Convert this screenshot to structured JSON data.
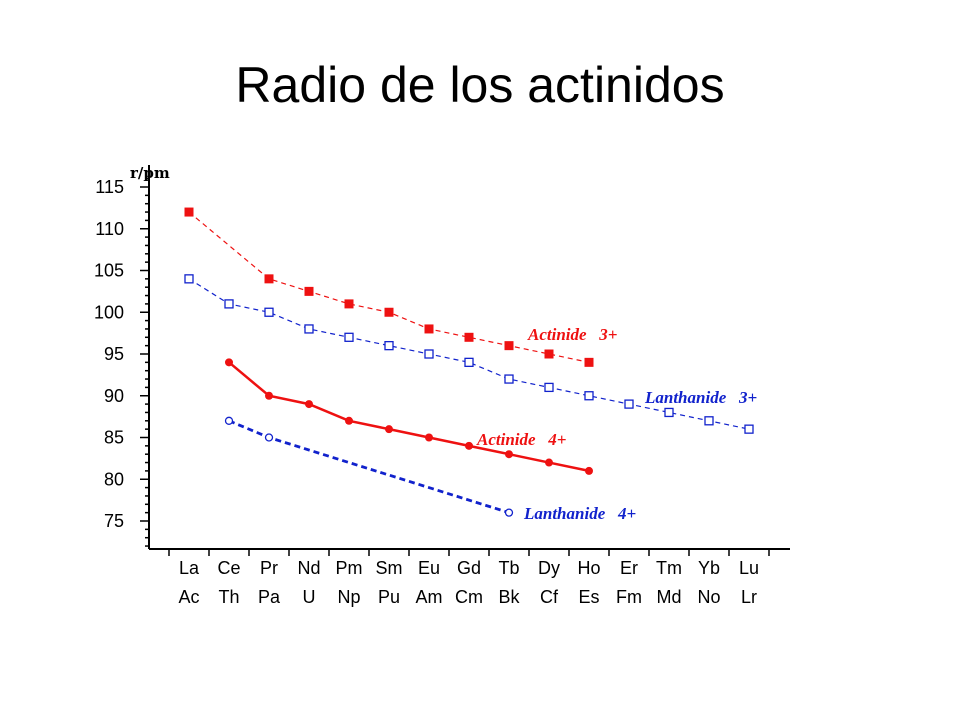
{
  "title": "Radio de los actinidos",
  "chart_data": {
    "type": "line",
    "ylabel": "r/pm",
    "ylim": [
      72,
      116
    ],
    "yticks": [
      75,
      80,
      85,
      90,
      95,
      100,
      105,
      110,
      115
    ],
    "categories_top": [
      "La",
      "Ce",
      "Pr",
      "Nd",
      "Pm",
      "Sm",
      "Eu",
      "Gd",
      "Tb",
      "Dy",
      "Ho",
      "Er",
      "Tm",
      "Yb",
      "Lu"
    ],
    "categories_bottom": [
      "Ac",
      "Th",
      "Pa",
      "U",
      "Np",
      "Pu",
      "Am",
      "Cm",
      "Bk",
      "Cf",
      "Es",
      "Fm",
      "Md",
      "No",
      "Lr"
    ],
    "legend": "inline labels",
    "grid": false,
    "series": [
      {
        "name": "Actinide 3+",
        "color": "#ee1111",
        "line": "dashed",
        "marker": "filled-square",
        "values": [
          112,
          null,
          104,
          102.5,
          101,
          100,
          98,
          97,
          96,
          95,
          94,
          null,
          null,
          null,
          null
        ]
      },
      {
        "name": "Lanthanide 3+",
        "color": "#1122cc",
        "line": "dashed",
        "marker": "open-square",
        "values": [
          104,
          101,
          100,
          98,
          97,
          96,
          95,
          94,
          92,
          91,
          90,
          89,
          88,
          87,
          86
        ]
      },
      {
        "name": "Actinide 4+",
        "color": "#ee1111",
        "line": "solid",
        "marker": "filled-circle",
        "values": [
          null,
          94,
          90,
          89,
          87,
          86,
          85,
          84,
          83,
          82,
          81,
          null,
          null,
          null,
          null
        ]
      },
      {
        "name": "Lanthanide 4+",
        "color": "#1122cc",
        "line": "dashed-bold",
        "marker": "open-circle",
        "values": [
          null,
          87,
          85,
          null,
          null,
          null,
          null,
          null,
          76,
          null,
          null,
          null,
          null,
          null,
          null
        ]
      }
    ]
  }
}
